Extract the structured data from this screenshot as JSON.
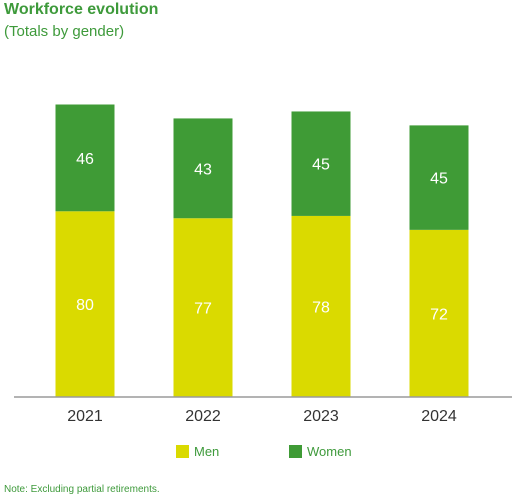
{
  "header": {
    "title": "Workforce evolution",
    "subtitle": "(Totals by gender)"
  },
  "note": "Note: Excluding partial retirements.",
  "colors": {
    "men": "#dada00",
    "women": "#3f9b36",
    "axis": "#9a9a9a",
    "text_green": "#3e9a3b"
  },
  "chart_data": {
    "type": "bar",
    "stacked": true,
    "categories": [
      "2021",
      "2022",
      "2023",
      "2024"
    ],
    "series": [
      {
        "name": "Men",
        "values": [
          80,
          77,
          78,
          72
        ]
      },
      {
        "name": "Women",
        "values": [
          46,
          43,
          45,
          45
        ]
      }
    ],
    "title": "Workforce evolution",
    "subtitle": "(Totals by gender)",
    "ylim": [
      0,
      140
    ],
    "grid": false,
    "legend": "bottom-center"
  }
}
